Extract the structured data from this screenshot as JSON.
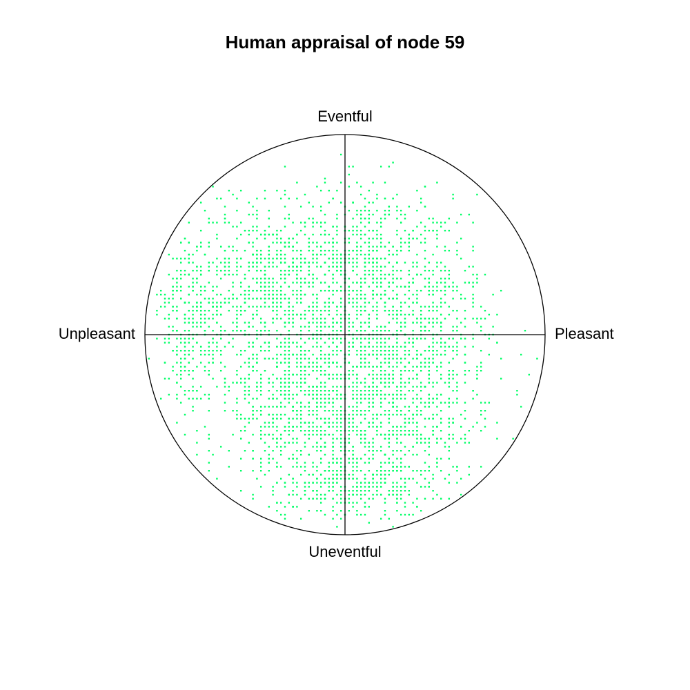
{
  "chart_data": {
    "type": "scatter",
    "title": "Human appraisal of node 59",
    "axes": {
      "top": "Eventful",
      "bottom": "Uneventful",
      "left": "Unpleasant",
      "right": "Pleasant"
    },
    "xlim": [
      -1,
      1
    ],
    "ylim": [
      -1,
      1
    ],
    "grid": false,
    "legend": "none",
    "colors": {
      "points": "#00ff66",
      "axis": "#000000"
    },
    "clusters": [
      {
        "name": "",
        "cx": -0.36,
        "cy": 0.25,
        "sx": 0.26,
        "sy": 0.2,
        "n": 900
      },
      {
        "name": "",
        "cx": 0.14,
        "cy": 0.35,
        "sx": 0.2,
        "sy": 0.2,
        "n": 600
      },
      {
        "name": "",
        "cx": -0.22,
        "cy": -0.3,
        "sx": 0.2,
        "sy": 0.22,
        "n": 800
      },
      {
        "name": "",
        "cx": 0.24,
        "cy": -0.35,
        "sx": 0.22,
        "sy": 0.25,
        "n": 900
      },
      {
        "name": "",
        "cx": 0.42,
        "cy": 0.05,
        "sx": 0.18,
        "sy": 0.2,
        "n": 300
      },
      {
        "name": "",
        "cx": -0.78,
        "cy": 0.05,
        "sx": 0.08,
        "sy": 0.25,
        "n": 250
      },
      {
        "name": "",
        "cx": 0.05,
        "cy": -0.75,
        "sx": 0.22,
        "sy": 0.08,
        "n": 300
      }
    ]
  }
}
